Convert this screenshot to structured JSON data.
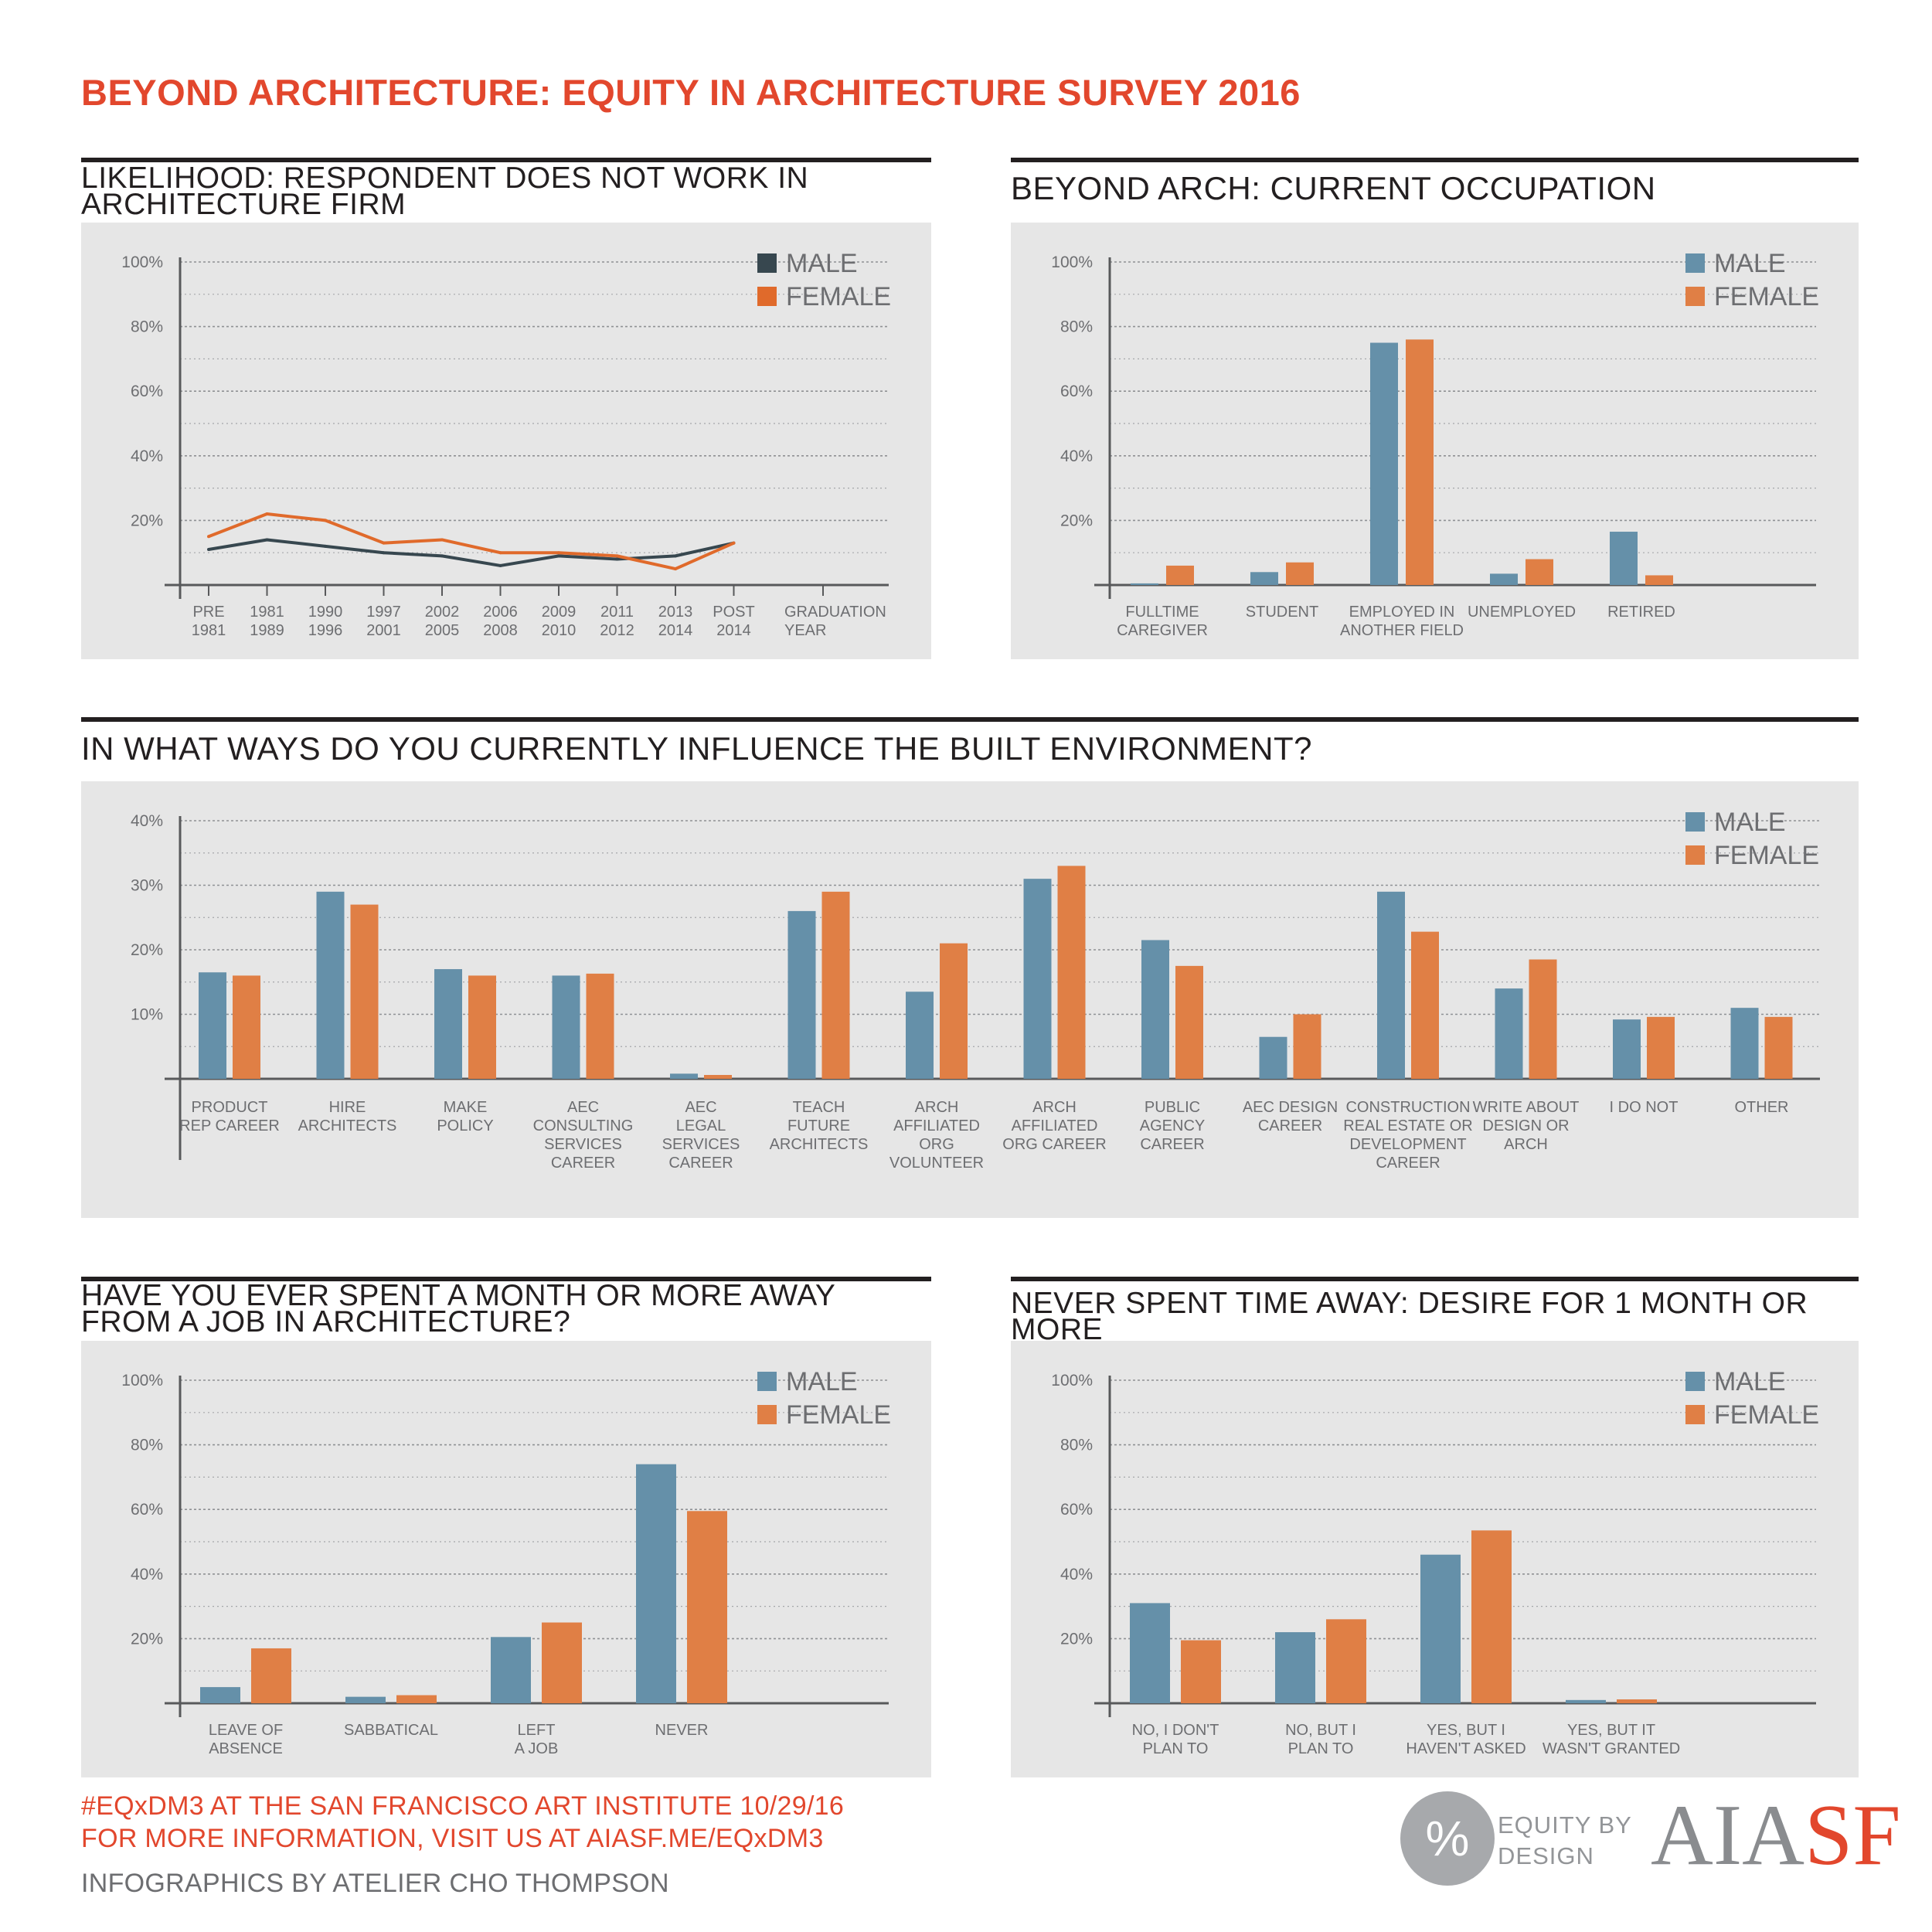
{
  "title": "BEYOND ARCHITECTURE: EQUITY IN ARCHITECTURE SURVEY 2016",
  "colors": {
    "male": "#6590a9",
    "female": "#e07f45",
    "male_line": "#37474f",
    "female_line": "#e06a2b",
    "accent": "#e2472d",
    "panel": "#e6e6e6"
  },
  "chart_data": [
    {
      "id": "likelihood",
      "type": "line",
      "title": "LIKELIHOOD: RESPONDENT DOES NOT WORK IN ARCHITECTURE FIRM",
      "categories": [
        "PRE 1981",
        "1981 1989",
        "1990 1996",
        "1997 2001",
        "2002 2005",
        "2006 2008",
        "2009 2010",
        "2011 2012",
        "2013 2014",
        "POST 2014"
      ],
      "xlabel": "GRADUATION YEAR",
      "yticks": [
        "100%",
        "80%",
        "60%",
        "40%",
        "20%"
      ],
      "ylim": [
        0,
        100
      ],
      "legend": [
        "MALE",
        "FEMALE"
      ],
      "legend_position": "top-right",
      "series": [
        {
          "name": "MALE",
          "values": [
            11,
            14,
            12,
            10,
            9,
            6,
            9,
            8,
            9,
            13
          ]
        },
        {
          "name": "FEMALE",
          "values": [
            15,
            22,
            20,
            13,
            14,
            10,
            10,
            9,
            5,
            13
          ]
        }
      ]
    },
    {
      "id": "occupation",
      "type": "bar",
      "title": "BEYOND ARCH: CURRENT OCCUPATION",
      "categories": [
        "FULLTIME CAREGIVER",
        "STUDENT",
        "EMPLOYED IN ANOTHER FIELD",
        "UNEMPLOYED",
        "RETIRED"
      ],
      "yticks": [
        "100%",
        "80%",
        "60%",
        "40%",
        "20%"
      ],
      "ylim": [
        0,
        100
      ],
      "legend": [
        "MALE",
        "FEMALE"
      ],
      "legend_position": "top-right",
      "series": [
        {
          "name": "MALE",
          "values": [
            0.5,
            4,
            75,
            3.5,
            16.5
          ]
        },
        {
          "name": "FEMALE",
          "values": [
            6,
            7,
            76,
            8,
            3
          ]
        }
      ]
    },
    {
      "id": "influence",
      "type": "bar",
      "title": "IN WHAT WAYS DO YOU CURRENTLY INFLUENCE THE BUILT ENVIRONMENT?",
      "categories": [
        "PRODUCT REP CAREER",
        "HIRE ARCHITECTS",
        "MAKE POLICY",
        "AEC CONSULTING SERVICES CAREER",
        "AEC LEGAL SERVICES CAREER",
        "TEACH FUTURE ARCHITECTS",
        "ARCH AFFILIATED ORG VOLUNTEER",
        "ARCH AFFILIATED ORG CAREER",
        "PUBLIC AGENCY CAREER",
        "AEC DESIGN CAREER",
        "CONSTRUCTION REAL ESTATE OR DEVELOPMENT CAREER",
        "WRITE ABOUT DESIGN OR ARCH",
        "I DO NOT",
        "OTHER"
      ],
      "yticks": [
        "40%",
        "30%",
        "20%",
        "10%"
      ],
      "ylim": [
        0,
        40
      ],
      "legend": [
        "MALE",
        "FEMALE"
      ],
      "legend_position": "top-right",
      "series": [
        {
          "name": "MALE",
          "values": [
            16.5,
            29,
            17,
            16,
            0.8,
            26,
            13.5,
            31,
            21.5,
            6.5,
            29,
            14,
            9.2,
            11
          ]
        },
        {
          "name": "FEMALE",
          "values": [
            16,
            27,
            16,
            16.3,
            0.6,
            29,
            21,
            33,
            17.5,
            10,
            22.8,
            18.5,
            9.6,
            9.6
          ]
        }
      ]
    },
    {
      "id": "time_away",
      "type": "bar",
      "title": "HAVE YOU EVER SPENT A MONTH OR MORE AWAY FROM A JOB IN ARCHITECTURE?",
      "categories": [
        "LEAVE OF ABSENCE",
        "SABBATICAL",
        "LEFT A JOB",
        "NEVER"
      ],
      "yticks": [
        "100%",
        "80%",
        "60%",
        "40%",
        "20%"
      ],
      "ylim": [
        0,
        100
      ],
      "legend": [
        "MALE",
        "FEMALE"
      ],
      "legend_position": "top-right",
      "series": [
        {
          "name": "MALE",
          "values": [
            5,
            2,
            20.5,
            74
          ]
        },
        {
          "name": "FEMALE",
          "values": [
            17,
            2.5,
            25,
            59.5
          ]
        }
      ]
    },
    {
      "id": "desire",
      "type": "bar",
      "title": "NEVER SPENT TIME AWAY: DESIRE FOR 1 MONTH OR MORE",
      "categories": [
        "NO, I DON'T PLAN TO",
        "NO, BUT I PLAN TO",
        "YES, BUT I HAVEN'T ASKED",
        "YES, BUT IT WASN'T GRANTED"
      ],
      "yticks": [
        "100%",
        "80%",
        "60%",
        "40%",
        "20%"
      ],
      "ylim": [
        0,
        100
      ],
      "legend": [
        "MALE",
        "FEMALE"
      ],
      "legend_position": "top-right",
      "series": [
        {
          "name": "MALE",
          "values": [
            31,
            22,
            46,
            1
          ]
        },
        {
          "name": "FEMALE",
          "values": [
            19.5,
            26,
            53.5,
            1.2
          ]
        }
      ]
    }
  ],
  "footer": {
    "event": "#EQxDM3 AT THE SAN FRANCISCO ART INSTITUTE 10/29/16",
    "info": "FOR MORE INFORMATION, VISIT US AT AIASF.ME/EQxDM3",
    "credit": "INFOGRAPHICS BY ATELIER CHO THOMPSON"
  },
  "logos": {
    "percent_symbol": "%",
    "equity_line1": "EQUITY BY",
    "equity_line2": "DESIGN",
    "aia": "AIA",
    "sf": "SF"
  }
}
